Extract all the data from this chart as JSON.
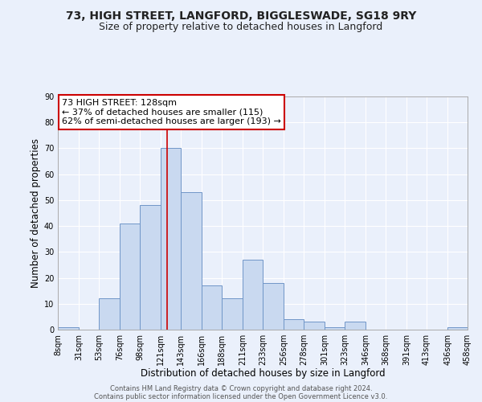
{
  "title1": "73, HIGH STREET, LANGFORD, BIGGLESWADE, SG18 9RY",
  "title2": "Size of property relative to detached houses in Langford",
  "xlabel": "Distribution of detached houses by size in Langford",
  "ylabel": "Number of detached properties",
  "bar_edges": [
    8,
    31,
    53,
    76,
    98,
    121,
    143,
    166,
    188,
    211,
    233,
    256,
    278,
    301,
    323,
    346,
    368,
    391,
    413,
    436,
    458
  ],
  "bar_heights": [
    1,
    0,
    12,
    41,
    48,
    70,
    53,
    17,
    12,
    27,
    18,
    4,
    3,
    1,
    3,
    0,
    0,
    0,
    0,
    1,
    0
  ],
  "bar_color": "#c9d9f0",
  "bar_edge_color": "#7096c8",
  "property_size": 128,
  "vline_color": "#cc0000",
  "annotation_line1": "73 HIGH STREET: 128sqm",
  "annotation_line2": "← 37% of detached houses are smaller (115)",
  "annotation_line3": "62% of semi-detached houses are larger (193) →",
  "annotation_box_color": "#ffffff",
  "annotation_box_edge": "#cc0000",
  "ylim": [
    0,
    90
  ],
  "yticks": [
    0,
    10,
    20,
    30,
    40,
    50,
    60,
    70,
    80,
    90
  ],
  "background_color": "#eaf0fb",
  "grid_color": "#ffffff",
  "footer_line1": "Contains HM Land Registry data © Crown copyright and database right 2024.",
  "footer_line2": "Contains public sector information licensed under the Open Government Licence v3.0.",
  "title1_fontsize": 10,
  "title2_fontsize": 9,
  "xlabel_fontsize": 8.5,
  "ylabel_fontsize": 8.5,
  "tick_fontsize": 7,
  "annotation_fontsize": 8,
  "footer_fontsize": 6
}
